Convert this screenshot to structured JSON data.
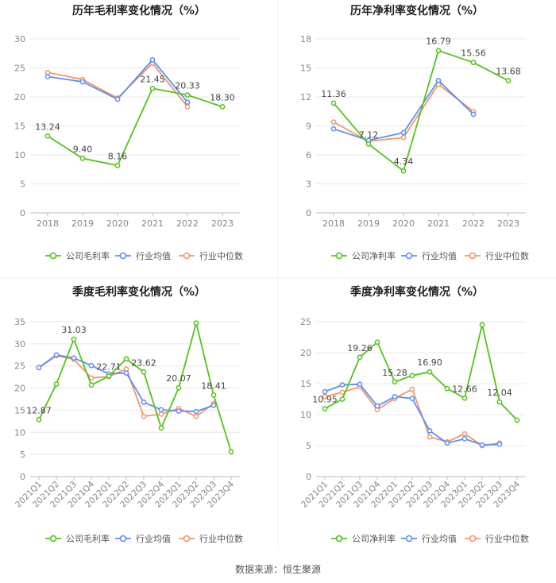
{
  "colors": {
    "company": "#52c41a",
    "industry_avg": "#5b8ff9",
    "industry_median": "#f4956a",
    "grid": "#e8e8e8",
    "axis_text": "#888888",
    "title": "#222222"
  },
  "legend": {
    "industry_avg": "行业均值",
    "industry_median": "行业中位数"
  },
  "footer": {
    "source": "数据来源：恒生聚源"
  },
  "chart_data": [
    {
      "id": "c1",
      "type": "line",
      "title": "历年毛利率变化情况（%）",
      "company_legend": "公司毛利率",
      "categories": [
        "2018",
        "2019",
        "2020",
        "2021",
        "2022",
        "2023"
      ],
      "ylim": [
        0,
        30
      ],
      "yticks": [
        0,
        5,
        10,
        15,
        20,
        25,
        30
      ],
      "ytick_labels": [
        "0",
        "5",
        "10",
        "15",
        "20",
        "25",
        "30"
      ],
      "rotate_x": false,
      "series": [
        {
          "key": "company",
          "name": "公司毛利率",
          "values": [
            13.24,
            9.4,
            8.16,
            21.45,
            20.33,
            18.3
          ]
        },
        {
          "key": "industry_avg",
          "name": "行业均值",
          "values": [
            23.5,
            22.6,
            19.6,
            26.4,
            19.1,
            null
          ]
        },
        {
          "key": "industry_median",
          "name": "行业中位数",
          "values": [
            24.2,
            23.0,
            19.8,
            25.8,
            18.3,
            null
          ]
        }
      ],
      "labels": [
        {
          "i": 0,
          "text": "13.24",
          "pos": "above"
        },
        {
          "i": 1,
          "text": "9.40",
          "pos": "above"
        },
        {
          "i": 2,
          "text": "8.16",
          "pos": "above"
        },
        {
          "i": 3,
          "text": "21.45",
          "pos": "above"
        },
        {
          "i": 4,
          "text": "20.33",
          "pos": "above"
        },
        {
          "i": 5,
          "text": "18.30",
          "pos": "above"
        }
      ]
    },
    {
      "id": "c2",
      "type": "line",
      "title": "历年净利率变化情况（%）",
      "company_legend": "公司净利率",
      "categories": [
        "2018",
        "2019",
        "2020",
        "2021",
        "2022",
        "2023"
      ],
      "ylim": [
        0,
        18
      ],
      "yticks": [
        0,
        3,
        6,
        9,
        12,
        15,
        18
      ],
      "ytick_labels": [
        "0",
        "3",
        "6",
        "9",
        "12",
        "15",
        "18"
      ],
      "rotate_x": false,
      "series": [
        {
          "key": "company",
          "name": "公司净利率",
          "values": [
            11.36,
            7.12,
            4.34,
            16.79,
            15.56,
            13.68
          ]
        },
        {
          "key": "industry_avg",
          "name": "行业均值",
          "values": [
            8.7,
            7.5,
            8.3,
            13.7,
            10.2,
            null
          ]
        },
        {
          "key": "industry_median",
          "name": "行业中位数",
          "values": [
            9.4,
            7.4,
            7.8,
            13.3,
            10.5,
            null
          ]
        }
      ],
      "labels": [
        {
          "i": 0,
          "text": "11.36",
          "pos": "above"
        },
        {
          "i": 1,
          "text": "7.12",
          "pos": "above"
        },
        {
          "i": 2,
          "text": "4.34",
          "pos": "above"
        },
        {
          "i": 3,
          "text": "16.79",
          "pos": "above"
        },
        {
          "i": 4,
          "text": "15.56",
          "pos": "above"
        },
        {
          "i": 5,
          "text": "13.68",
          "pos": "above"
        }
      ]
    },
    {
      "id": "c3",
      "type": "line",
      "title": "季度毛利率变化情况（%）",
      "company_legend": "公司毛利率",
      "categories": [
        "2021Q1",
        "2021Q2",
        "2021Q3",
        "2021Q4",
        "2022Q1",
        "2022Q2",
        "2022Q3",
        "2022Q4",
        "2023Q1",
        "2023Q2",
        "2023Q3",
        "2023Q4"
      ],
      "ylim": [
        0,
        35
      ],
      "yticks": [
        0,
        5,
        10,
        15,
        20,
        25,
        30,
        35
      ],
      "ytick_labels": [
        "0",
        "5",
        "10",
        "15",
        "20",
        "25",
        "30",
        "35"
      ],
      "rotate_x": true,
      "series": [
        {
          "key": "company",
          "name": "公司毛利率",
          "values": [
            12.87,
            20.9,
            31.03,
            20.7,
            22.71,
            26.6,
            23.62,
            11.0,
            20.07,
            34.7,
            18.41,
            5.6
          ]
        },
        {
          "key": "industry_avg",
          "name": "行业均值",
          "values": [
            24.6,
            27.5,
            26.8,
            25.1,
            23.2,
            23.4,
            16.8,
            15.1,
            14.8,
            14.7,
            16.1,
            null
          ]
        },
        {
          "key": "industry_median",
          "name": "行业中位数",
          "values": [
            24.6,
            27.3,
            26.5,
            22.3,
            22.6,
            24.3,
            13.6,
            14.1,
            15.4,
            13.6,
            16.5,
            null
          ]
        }
      ],
      "labels": [
        {
          "i": 0,
          "text": "12.87",
          "pos": "above"
        },
        {
          "i": 2,
          "text": "31.03",
          "pos": "above"
        },
        {
          "i": 4,
          "text": "22.71",
          "pos": "above"
        },
        {
          "i": 6,
          "text": "23.62",
          "pos": "above"
        },
        {
          "i": 8,
          "text": "20.07",
          "pos": "above"
        },
        {
          "i": 10,
          "text": "18.41",
          "pos": "above"
        }
      ]
    },
    {
      "id": "c4",
      "type": "line",
      "title": "季度净利率变化情况（%）",
      "company_legend": "公司净利率",
      "categories": [
        "2021Q1",
        "2021Q2",
        "2021Q3",
        "2021Q4",
        "2022Q1",
        "2022Q2",
        "2022Q3",
        "2022Q4",
        "2023Q1",
        "2023Q2",
        "2023Q3",
        "2023Q4"
      ],
      "ylim": [
        0,
        25
      ],
      "yticks": [
        0,
        5,
        10,
        15,
        20,
        25
      ],
      "ytick_labels": [
        "0",
        "5",
        "10",
        "15",
        "20",
        "25"
      ],
      "rotate_x": true,
      "series": [
        {
          "key": "company",
          "name": "公司净利率",
          "values": [
            10.95,
            12.5,
            19.26,
            21.7,
            15.28,
            16.3,
            16.9,
            14.2,
            12.66,
            24.5,
            12.04,
            9.1
          ]
        },
        {
          "key": "industry_avg",
          "name": "行业均值",
          "values": [
            13.7,
            14.8,
            14.9,
            11.4,
            12.9,
            12.6,
            7.4,
            5.4,
            6.1,
            5.1,
            5.2,
            null
          ]
        },
        {
          "key": "industry_median",
          "name": "行业中位数",
          "values": [
            12.9,
            13.6,
            14.5,
            10.8,
            12.6,
            14.1,
            6.4,
            5.6,
            6.9,
            5.0,
            5.4,
            null
          ]
        }
      ],
      "labels": [
        {
          "i": 0,
          "text": "10.95",
          "pos": "above"
        },
        {
          "i": 2,
          "text": "19.26",
          "pos": "above"
        },
        {
          "i": 4,
          "text": "15.28",
          "pos": "above"
        },
        {
          "i": 6,
          "text": "16.90",
          "pos": "above"
        },
        {
          "i": 8,
          "text": "12.66",
          "pos": "above"
        },
        {
          "i": 10,
          "text": "12.04",
          "pos": "above"
        }
      ]
    }
  ]
}
